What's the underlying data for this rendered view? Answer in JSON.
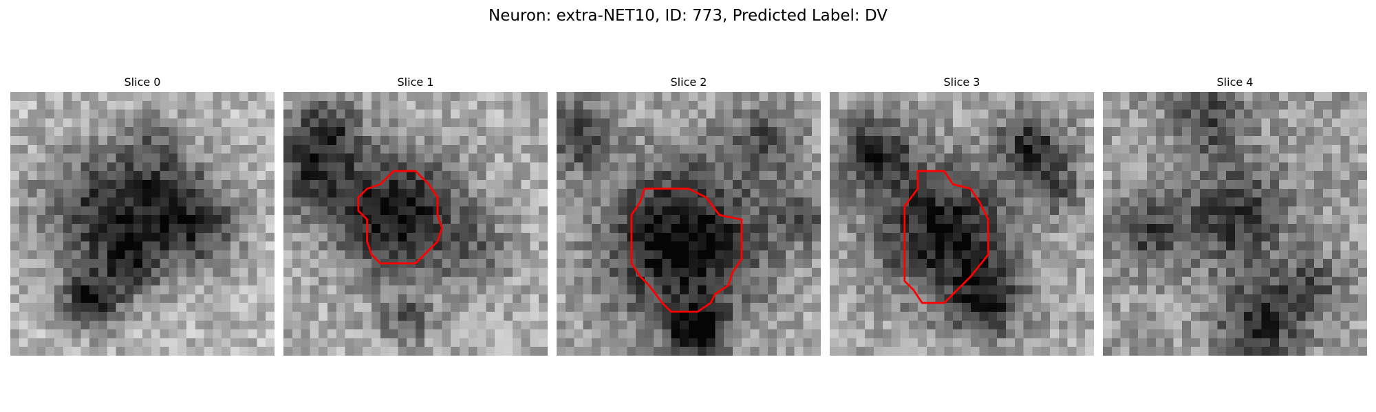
{
  "figure": {
    "title": "Neuron: extra-NET10, ID: 773, Predicted Label: DV"
  },
  "panels": [
    {
      "title": "Slice 0",
      "contour": null,
      "blobs": [
        {
          "cx": 16,
          "cy": 5,
          "r": 2,
          "v": 0.25
        },
        {
          "cx": 10,
          "cy": 14,
          "r": 5.5,
          "v": 0.65
        },
        {
          "cx": 18,
          "cy": 12,
          "r": 4.5,
          "v": 0.55
        },
        {
          "cx": 9,
          "cy": 24,
          "r": 2.2,
          "v": 0.8
        },
        {
          "cx": 14,
          "cy": 20,
          "r": 2.5,
          "v": 0.5
        },
        {
          "cx": 22,
          "cy": 16,
          "r": 3,
          "v": 0.45
        }
      ],
      "base": 0.72,
      "seed": 11
    },
    {
      "title": "Slice 1",
      "contour": [
        [
          11,
          10.5
        ],
        [
          12.5,
          9
        ],
        [
          15,
          9
        ],
        [
          16.5,
          10.5
        ],
        [
          17.5,
          12
        ],
        [
          17.5,
          14
        ],
        [
          18,
          15.5
        ],
        [
          17.5,
          17
        ],
        [
          15,
          19.5
        ],
        [
          11,
          19.5
        ],
        [
          10,
          18.5
        ],
        [
          9.5,
          17
        ],
        [
          9.5,
          14.5
        ],
        [
          8.5,
          13.5
        ],
        [
          8.5,
          12
        ],
        [
          9.5,
          11
        ]
      ],
      "blobs": [
        {
          "cx": 13,
          "cy": 14,
          "r": 5,
          "v": 0.9
        },
        {
          "cx": 3,
          "cy": 9,
          "r": 3.5,
          "v": 0.6
        },
        {
          "cx": 5,
          "cy": 4,
          "r": 2.5,
          "v": 0.55
        },
        {
          "cx": 14,
          "cy": 26,
          "r": 2,
          "v": 0.45
        },
        {
          "cx": 22,
          "cy": 18,
          "r": 3,
          "v": 0.3
        }
      ],
      "base": 0.68,
      "seed": 23
    },
    {
      "title": "Slice 2",
      "contour": [
        [
          10,
          11
        ],
        [
          15,
          11
        ],
        [
          17,
          12
        ],
        [
          18.5,
          14
        ],
        [
          21,
          14.5
        ],
        [
          21,
          19
        ],
        [
          20,
          20.5
        ],
        [
          19.5,
          22
        ],
        [
          18,
          23
        ],
        [
          17.5,
          24
        ],
        [
          16,
          25
        ],
        [
          13,
          25
        ],
        [
          12,
          24
        ],
        [
          10.5,
          22
        ],
        [
          9.5,
          21
        ],
        [
          8.5,
          19.5
        ],
        [
          8.5,
          14
        ],
        [
          9.5,
          12.5
        ]
      ],
      "blobs": [
        {
          "cx": 14.5,
          "cy": 17,
          "r": 6.5,
          "v": 0.95
        },
        {
          "cx": 16,
          "cy": 27.5,
          "r": 2.2,
          "v": 0.9
        },
        {
          "cx": 2,
          "cy": 5,
          "r": 3,
          "v": 0.55
        },
        {
          "cx": 24,
          "cy": 5,
          "r": 3,
          "v": 0.45
        },
        {
          "cx": 28,
          "cy": 14,
          "r": 2.5,
          "v": 0.4
        }
      ],
      "base": 0.67,
      "seed": 37
    },
    {
      "title": "Slice 3",
      "contour": [
        [
          10,
          9
        ],
        [
          13,
          9
        ],
        [
          14,
          10.5
        ],
        [
          16,
          11
        ],
        [
          17,
          12.5
        ],
        [
          17.5,
          13.5
        ],
        [
          18,
          14.5
        ],
        [
          18,
          18.5
        ],
        [
          16,
          21
        ],
        [
          14.5,
          22.5
        ],
        [
          14,
          23
        ],
        [
          13,
          24
        ],
        [
          10.5,
          24
        ],
        [
          9.5,
          22.5
        ],
        [
          8.5,
          21.5
        ],
        [
          8.5,
          13
        ],
        [
          10,
          11
        ]
      ],
      "blobs": [
        {
          "cx": 13,
          "cy": 16,
          "r": 5.5,
          "v": 0.85
        },
        {
          "cx": 5,
          "cy": 7,
          "r": 3,
          "v": 0.7
        },
        {
          "cx": 23,
          "cy": 6,
          "r": 2.8,
          "v": 0.65
        },
        {
          "cx": 18,
          "cy": 24,
          "r": 2.8,
          "v": 0.65
        },
        {
          "cx": 26,
          "cy": 11,
          "r": 2.2,
          "v": 0.4
        }
      ],
      "base": 0.66,
      "seed": 51
    },
    {
      "title": "Slice 4",
      "contour": null,
      "blobs": [
        {
          "cx": 15,
          "cy": 14,
          "r": 4,
          "v": 0.6
        },
        {
          "cx": 5,
          "cy": 16,
          "r": 3,
          "v": 0.5
        },
        {
          "cx": 18,
          "cy": 26,
          "r": 3.5,
          "v": 0.65
        },
        {
          "cx": 12,
          "cy": 3,
          "r": 3,
          "v": 0.5
        },
        {
          "cx": 24,
          "cy": 22,
          "r": 2.5,
          "v": 0.4
        }
      ],
      "base": 0.62,
      "seed": 67
    }
  ],
  "colors": {
    "contour": "#ff0000",
    "background": "#ffffff"
  }
}
